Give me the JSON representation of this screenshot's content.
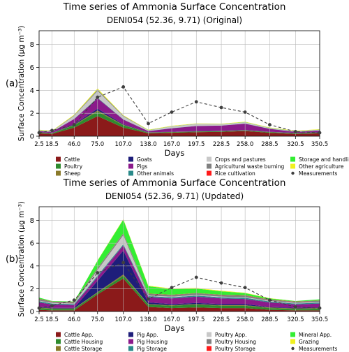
{
  "chart_data": [
    {
      "type": "area",
      "panel_label": "(a)",
      "title": "Time series of Ammonia Surface Concentration",
      "subtitle": "DENI054 (52.36, 9.71) (Original)",
      "xlabel": "Days",
      "ylabel": "Surface Concentration (μg m⁻³)",
      "x": [
        2.5,
        18.5,
        46.0,
        75.0,
        107.0,
        138.0,
        167.0,
        197.5,
        228.5,
        258.0,
        288.5,
        320.5,
        350.5
      ],
      "x_tick_labels": [
        "2.5",
        "18.5",
        "46.0",
        "75.0",
        "107.0",
        "138.0",
        "167.0",
        "197.5",
        "228.5",
        "258.0",
        "288.5",
        "320.5",
        "350.5"
      ],
      "ylim": [
        0,
        9.2
      ],
      "y_ticks": [
        0,
        2,
        4,
        6,
        8
      ],
      "y_tick_labels": [
        "0",
        "2",
        "4",
        "6",
        "8"
      ],
      "grid": true,
      "legend_placement": "below",
      "series": [
        {
          "name": "Cattle",
          "color": "#8b1a1a",
          "values": [
            0.25,
            0.2,
            0.75,
            1.75,
            0.75,
            0.25,
            0.3,
            0.35,
            0.38,
            0.45,
            0.3,
            0.2,
            0.25
          ]
        },
        {
          "name": "Poultry",
          "color": "#2e8b2e",
          "values": [
            0.05,
            0.05,
            0.2,
            0.4,
            0.2,
            0.05,
            0.05,
            0.05,
            0.05,
            0.05,
            0.05,
            0.05,
            0.05
          ]
        },
        {
          "name": "Sheep",
          "color": "#8a7a2a",
          "values": [
            0.02,
            0.02,
            0.05,
            0.1,
            0.05,
            0.02,
            0.02,
            0.02,
            0.02,
            0.02,
            0.02,
            0.02,
            0.02
          ]
        },
        {
          "name": "Goats",
          "color": "#1e1e7a",
          "values": [
            0.02,
            0.02,
            0.05,
            0.15,
            0.05,
            0.02,
            0.02,
            0.02,
            0.02,
            0.02,
            0.02,
            0.02,
            0.02
          ]
        },
        {
          "name": "Pigs",
          "color": "#8b1a8b",
          "values": [
            0.1,
            0.08,
            0.45,
            0.9,
            0.4,
            0.1,
            0.3,
            0.45,
            0.45,
            0.55,
            0.25,
            0.08,
            0.15
          ]
        },
        {
          "name": "Other animals",
          "color": "#2a8a8a",
          "values": [
            0.01,
            0.01,
            0.02,
            0.05,
            0.02,
            0.01,
            0.01,
            0.01,
            0.01,
            0.01,
            0.01,
            0.01,
            0.01
          ]
        },
        {
          "name": "Crops and pastures",
          "color": "#c8c8c8",
          "values": [
            0.05,
            0.04,
            0.25,
            0.6,
            0.25,
            0.05,
            0.15,
            0.15,
            0.1,
            0.1,
            0.05,
            0.04,
            0.05
          ]
        },
        {
          "name": "Agricultural waste burning",
          "color": "#808080",
          "values": [
            0.02,
            0.02,
            0.05,
            0.1,
            0.05,
            0.02,
            0.02,
            0.02,
            0.02,
            0.02,
            0.02,
            0.02,
            0.02
          ]
        },
        {
          "name": "Rice cultivation",
          "color": "#ff1a1a",
          "values": [
            0,
            0,
            0,
            0,
            0,
            0,
            0,
            0,
            0,
            0,
            0,
            0,
            0
          ]
        },
        {
          "name": "Storage and handling of agricultural products",
          "color": "#33ee33",
          "values": [
            0.01,
            0.01,
            0.01,
            0.01,
            0.01,
            0.01,
            0.01,
            0.01,
            0.01,
            0.01,
            0.01,
            0.01,
            0.01
          ]
        },
        {
          "name": "Other agriculture",
          "color": "#f0f020",
          "values": [
            0.03,
            0.03,
            0.05,
            0.1,
            0.05,
            0.03,
            0.03,
            0.03,
            0.03,
            0.03,
            0.03,
            0.03,
            0.03
          ]
        }
      ],
      "measurements": {
        "name": "Measurements",
        "color": "#404040",
        "values": [
          0.3,
          0.5,
          1.0,
          3.4,
          4.3,
          1.1,
          2.1,
          3.0,
          2.5,
          2.1,
          1.0,
          0.4,
          0.3
        ]
      }
    },
    {
      "type": "area",
      "panel_label": "(b)",
      "title": "Time series of Ammonia Surface Concentration",
      "subtitle": "DENI054 (52.36, 9.71) (Updated)",
      "xlabel": "Days",
      "ylabel": "Surface Concentration (μg m⁻³)",
      "x": [
        2.5,
        18.5,
        46.0,
        75.0,
        107.0,
        138.0,
        167.0,
        197.5,
        228.5,
        258.0,
        288.5,
        320.5,
        350.5
      ],
      "x_tick_labels": [
        "2.5",
        "18.5",
        "46.0",
        "75.0",
        "107.0",
        "138.0",
        "167.0",
        "197.5",
        "228.5",
        "258.0",
        "288.5",
        "320.5",
        "350.5"
      ],
      "ylim": [
        0,
        9.2
      ],
      "y_ticks": [
        0,
        2,
        4,
        6,
        8
      ],
      "y_tick_labels": [
        "0",
        "2",
        "4",
        "6",
        "8"
      ],
      "grid": true,
      "legend_placement": "below",
      "series": [
        {
          "name": "Cattle App.",
          "color": "#8b1a1a",
          "values": [
            0.15,
            0.1,
            0.1,
            1.5,
            2.9,
            0.4,
            0.3,
            0.35,
            0.3,
            0.3,
            0.15,
            0.1,
            0.1
          ]
        },
        {
          "name": "Cattle Housing",
          "color": "#2e8b2e",
          "values": [
            0.15,
            0.12,
            0.12,
            0.15,
            0.25,
            0.2,
            0.2,
            0.25,
            0.2,
            0.2,
            0.15,
            0.12,
            0.15
          ]
        },
        {
          "name": "Cattle Storage",
          "color": "#8a7a2a",
          "values": [
            0.05,
            0.05,
            0.05,
            0.05,
            0.1,
            0.05,
            0.05,
            0.05,
            0.05,
            0.05,
            0.05,
            0.05,
            0.05
          ]
        },
        {
          "name": "Pig App.",
          "color": "#1e1e7a",
          "values": [
            0.05,
            0.05,
            0.05,
            1.0,
            2.1,
            0.15,
            0.1,
            0.1,
            0.1,
            0.1,
            0.05,
            0.05,
            0.05
          ]
        },
        {
          "name": "Pig Housing",
          "color": "#8b1a8b",
          "values": [
            0.4,
            0.3,
            0.25,
            0.35,
            0.45,
            0.45,
            0.5,
            0.55,
            0.5,
            0.45,
            0.4,
            0.3,
            0.35
          ]
        },
        {
          "name": "Pig Storage",
          "color": "#2a8a8a",
          "values": [
            0.1,
            0.08,
            0.08,
            0.1,
            0.1,
            0.1,
            0.1,
            0.1,
            0.1,
            0.1,
            0.08,
            0.08,
            0.08
          ]
        },
        {
          "name": "Poultry App.",
          "color": "#c8c8c8",
          "values": [
            0.05,
            0.05,
            0.05,
            0.5,
            0.8,
            0.05,
            0.05,
            0.05,
            0.05,
            0.05,
            0.05,
            0.05,
            0.05
          ]
        },
        {
          "name": "Poultry Housing",
          "color": "#808080",
          "values": [
            0.15,
            0.1,
            0.1,
            0.15,
            0.15,
            0.15,
            0.15,
            0.15,
            0.15,
            0.15,
            0.1,
            0.1,
            0.12
          ]
        },
        {
          "name": "Poultry Storage",
          "color": "#ff1a1a",
          "values": [
            0.02,
            0.02,
            0.02,
            0.02,
            0.02,
            0.02,
            0.02,
            0.02,
            0.02,
            0.02,
            0.02,
            0.02,
            0.02
          ]
        },
        {
          "name": "Mineral App.",
          "color": "#33ee33",
          "values": [
            0.1,
            0.05,
            0.05,
            0.65,
            1.2,
            0.65,
            0.5,
            0.4,
            0.3,
            0.2,
            0.1,
            0.05,
            0.1
          ]
        },
        {
          "name": "Grazing",
          "color": "#f0f020",
          "values": [
            0.0,
            0.0,
            0.0,
            0.02,
            0.05,
            0.05,
            0.05,
            0.05,
            0.05,
            0.03,
            0.02,
            0.0,
            0.0
          ]
        }
      ],
      "measurements": {
        "name": "Measurements",
        "color": "#404040",
        "values": [
          0.3,
          0.5,
          1.0,
          3.4,
          4.3,
          1.1,
          2.1,
          3.0,
          2.5,
          2.1,
          1.0,
          0.4,
          0.3
        ]
      }
    }
  ]
}
